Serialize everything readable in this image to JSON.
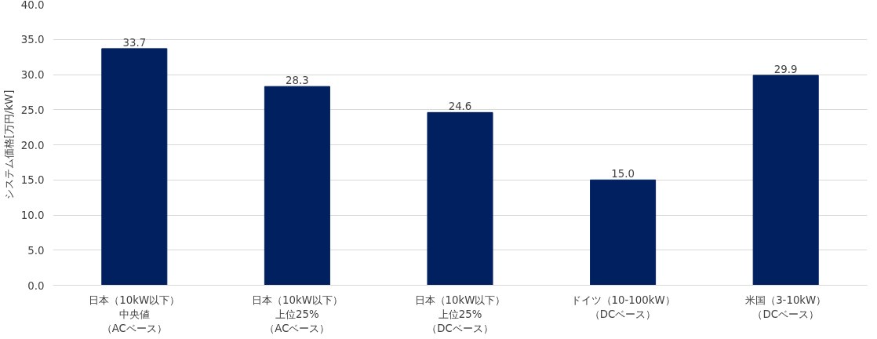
{
  "chart_data": {
    "type": "bar",
    "ylabel": "システム価格[万円/kW]",
    "categories": [
      "日本（10kW以下）中央値（ACベース）",
      "日本（10kW以下）上位25%（ACベース）",
      "日本（10kW以下）上位25%（DCベース）",
      "ドイツ（10-100kW）（DCベース）",
      "米国（3-10kW）（DCベース）"
    ],
    "values": [
      33.7,
      28.3,
      24.6,
      15.0,
      29.9
    ],
    "color": "#002060",
    "ylim": [
      0,
      40
    ],
    "yticks": [
      {
        "value": 0,
        "label": "0.0"
      },
      {
        "value": 5,
        "label": "5.0"
      },
      {
        "value": 10,
        "label": "10.0"
      },
      {
        "value": 15,
        "label": "15.0"
      },
      {
        "value": 20,
        "label": "20.0"
      },
      {
        "value": 25,
        "label": "25.0"
      },
      {
        "value": 30,
        "label": "30.0"
      },
      {
        "value": 35,
        "label": "35.0"
      },
      {
        "value": 40,
        "label": "40.0"
      }
    ],
    "value_labels": [
      "33.7",
      "28.3",
      "24.6",
      "15.0",
      "29.9"
    ],
    "grid": "y"
  }
}
